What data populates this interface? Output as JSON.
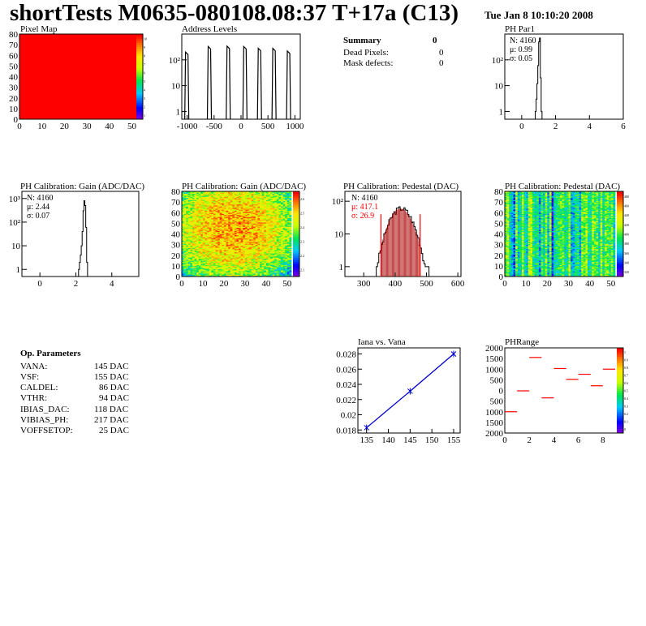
{
  "header": {
    "title": "shortTests M0635-080108.08:37 T+17a (C13)",
    "date": "Tue Jan  8 10:10:20 2008"
  },
  "colors": {
    "red": "#ff0000",
    "blue": "#0000cc",
    "darkred": "#aa0000"
  },
  "summary": {
    "title": "Summary",
    "value": "0",
    "dead_label": "Dead Pixels:",
    "dead_value": "0",
    "mask_label": "Mask defects:",
    "mask_value": "0"
  },
  "op_params": {
    "title": "Op. Parameters",
    "rows": [
      {
        "name": "VANA:",
        "value": "145 DAC"
      },
      {
        "name": "VSF:",
        "value": "155 DAC"
      },
      {
        "name": "CALDEL:",
        "value": "86 DAC"
      },
      {
        "name": "VTHR:",
        "value": "94 DAC"
      },
      {
        "name": "IBIAS_DAC:",
        "value": "118 DAC"
      },
      {
        "name": "VIBIAS_PH:",
        "value": "217 DAC"
      },
      {
        "name": "VOFFSETOP:",
        "value": "25 DAC"
      }
    ]
  },
  "chart_data": [
    {
      "id": "pixelmap",
      "type": "heatmap",
      "title": "Pixel Map",
      "x_ticks": [
        "0",
        "10",
        "20",
        "30",
        "40",
        "50"
      ],
      "y_ticks": [
        "0",
        "10",
        "20",
        "30",
        "40",
        "50",
        "60",
        "70",
        "80"
      ],
      "xlim": [
        0,
        52
      ],
      "ylim": [
        0,
        80
      ],
      "fill": "uniform-max",
      "scale_ticks": [
        "1",
        "2",
        "3",
        "4",
        "5",
        "6",
        "7",
        "8",
        "9",
        "10"
      ]
    },
    {
      "id": "address",
      "type": "bar",
      "title": "Address Levels",
      "x_ticks": [
        "-1000",
        "-500",
        "0",
        "500",
        "1000"
      ],
      "y_ticks": [
        "1",
        "10",
        "10²"
      ],
      "xlim": [
        -1100,
        1100
      ],
      "log_y": true,
      "ylim": [
        0.5,
        1000
      ],
      "peaks": [
        {
          "x": -1000,
          "h": 200
        },
        {
          "x": -580,
          "h": 330
        },
        {
          "x": -230,
          "h": 340
        },
        {
          "x": 80,
          "h": 330
        },
        {
          "x": 350,
          "h": 280
        },
        {
          "x": 620,
          "h": 280
        },
        {
          "x": 890,
          "h": 220
        }
      ]
    },
    {
      "id": "phpar1",
      "type": "bar",
      "title": "PH Par1",
      "stats": [
        "N: 4160",
        "μ: 0.99",
        "σ: 0.05"
      ],
      "x_ticks": [
        "0",
        "2",
        "4",
        "6"
      ],
      "xlim": [
        -1,
        6
      ],
      "log_y": true,
      "y_ticks": [
        "1",
        "10",
        "10²"
      ],
      "ylim": [
        0.5,
        1000
      ],
      "hist": {
        "x": [
          0.75,
          0.8,
          0.85,
          0.9,
          0.95,
          1.0,
          1.05,
          1.1,
          1.15
        ],
        "v": [
          0,
          1,
          3,
          12,
          60,
          500,
          700,
          20,
          1
        ]
      }
    },
    {
      "id": "gain1",
      "type": "bar",
      "title": "PH Calibration: Gain (ADC/DAC)",
      "stats": [
        "N: 4160",
        "μ: 2.44",
        "σ: 0.07"
      ],
      "x_ticks": [
        "0",
        "2",
        "4"
      ],
      "xlim": [
        -1,
        5.5
      ],
      "log_y": true,
      "y_ticks": [
        "1",
        "10",
        "10²",
        "10³"
      ],
      "ylim": [
        0.5,
        2000
      ],
      "hist": {
        "x": [
          2.1,
          2.15,
          2.2,
          2.25,
          2.3,
          2.35,
          2.4,
          2.45,
          2.5,
          2.55,
          2.6
        ],
        "v": [
          0,
          1,
          2,
          4,
          10,
          40,
          300,
          800,
          500,
          60,
          2
        ]
      }
    },
    {
      "id": "gain2",
      "type": "heatmap",
      "title": "PH Calibration: Gain (ADC/DAC)",
      "x_ticks": [
        "0",
        "10",
        "20",
        "30",
        "40",
        "50"
      ],
      "y_ticks": [
        "0",
        "10",
        "20",
        "30",
        "40",
        "50",
        "60",
        "70",
        "80"
      ],
      "xlim": [
        0,
        52
      ],
      "ylim": [
        0,
        80
      ],
      "scale_ticks": [
        "2.1",
        "2.2",
        "2.3",
        "2.4",
        "2.5",
        "2.6"
      ]
    },
    {
      "id": "pedestal1",
      "type": "bar",
      "title": "PH Calibration: Pedestal (DAC)",
      "stats": [
        "N: 4160"
      ],
      "stats_red": [
        "μ: 417.1",
        "σ: 26.9"
      ],
      "x_ticks": [
        "300",
        "400",
        "500",
        "600"
      ],
      "xlim": [
        240,
        610
      ],
      "log_y": true,
      "y_ticks": [
        "1",
        "10",
        "10²"
      ],
      "ylim": [
        0.5,
        200
      ],
      "fit_range": [
        355,
        480
      ],
      "mean": 417.1,
      "sigma": 26.9,
      "peak": 60
    },
    {
      "id": "pedestal2",
      "type": "heatmap",
      "title": "PH Calibration: Pedestal (DAC)",
      "x_ticks": [
        "0",
        "10",
        "20",
        "30",
        "40",
        "50"
      ],
      "y_ticks": [
        "0",
        "10",
        "20",
        "30",
        "40",
        "50",
        "60",
        "70",
        "80"
      ],
      "xlim": [
        0,
        52
      ],
      "ylim": [
        0,
        80
      ],
      "scale_ticks": [
        "320",
        "340",
        "360",
        "380",
        "400",
        "420",
        "440",
        "460",
        "480"
      ]
    },
    {
      "id": "iana",
      "type": "line",
      "title": "Iana vs. Vana",
      "x": [
        135,
        145,
        155
      ],
      "y": [
        0.0183,
        0.0231,
        0.028
      ],
      "x_ticks": [
        "135",
        "140",
        "145",
        "150",
        "155"
      ],
      "y_ticks": [
        "0.018",
        "0.02",
        "0.022",
        "0.024",
        "0.026",
        "0.028"
      ],
      "xlim": [
        133,
        156.5
      ],
      "ylim": [
        0.0176,
        0.0288
      ]
    },
    {
      "id": "phrange",
      "type": "scatter",
      "title": "PHRange",
      "x": [
        0,
        1,
        2,
        3,
        4,
        5,
        6,
        7,
        8
      ],
      "y": [
        -1000,
        -20,
        1550,
        -350,
        1030,
        520,
        760,
        220,
        1000
      ],
      "x_ticks": [
        "0",
        "2",
        "4",
        "6",
        "8"
      ],
      "y_ticks": [
        "2000",
        "1500",
        "1000",
        "500",
        "0",
        "500",
        "1000",
        "1500",
        "2000"
      ],
      "xlim": [
        0,
        9
      ],
      "ylim": [
        -2000,
        2000
      ],
      "scale_ticks": [
        "0",
        "0.1",
        "0.2",
        "0.3",
        "0.4",
        "0.5",
        "0.6",
        "0.7",
        "0.8",
        "0.9",
        "1"
      ]
    }
  ]
}
